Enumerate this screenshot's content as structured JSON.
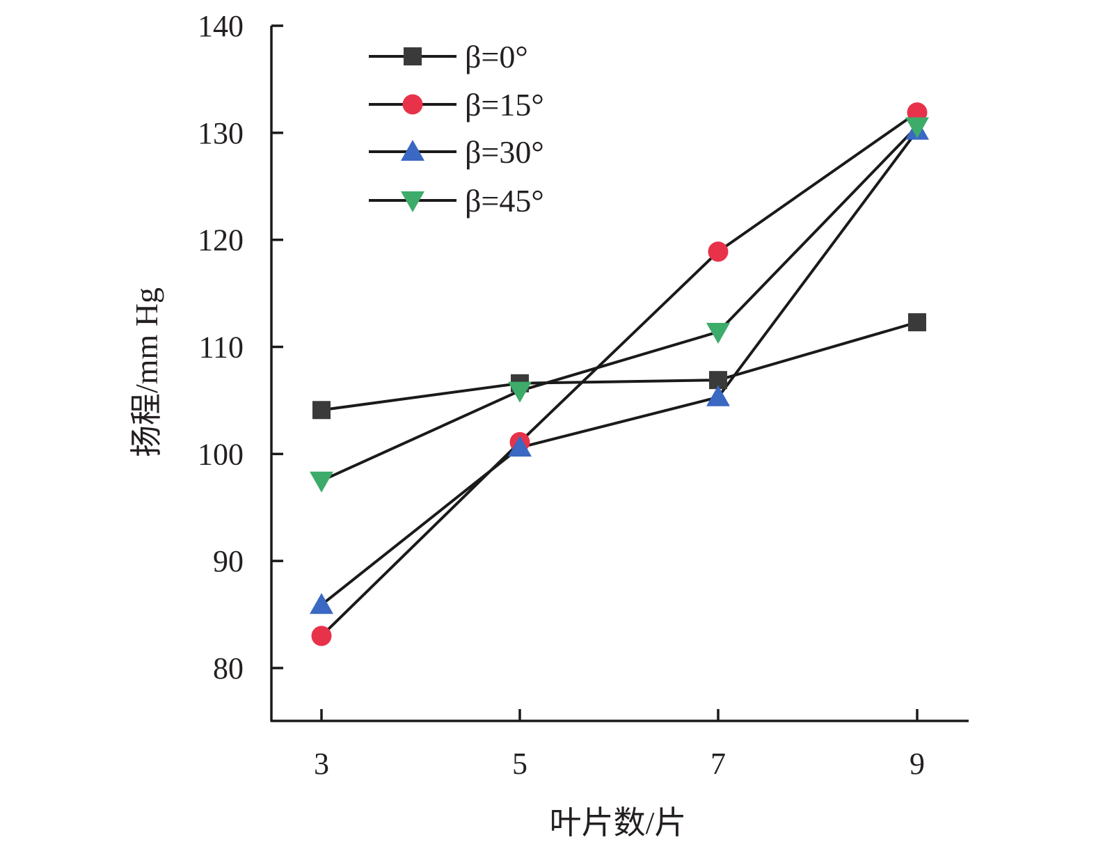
{
  "chart_data": {
    "type": "line",
    "title": "",
    "xlabel": "叶片数/片",
    "ylabel": "扬程/mm Hg",
    "x": [
      3,
      5,
      7,
      9
    ],
    "x_tick_labels": [
      "3",
      "5",
      "7",
      "9"
    ],
    "ylim": [
      75,
      140
    ],
    "y_ticks": [
      80,
      90,
      100,
      110,
      120,
      130,
      140
    ],
    "y_tick_labels": [
      "80",
      "90",
      "100",
      "110",
      "120",
      "130",
      "140"
    ],
    "grid": false,
    "legend_position": "top-left",
    "series": [
      {
        "name": "β=0°",
        "marker": "square",
        "color": "#3a3a3a",
        "values": [
          104.1,
          106.6,
          106.9,
          112.3
        ]
      },
      {
        "name": "β=15°",
        "marker": "circle",
        "color": "#e8324a",
        "values": [
          83.0,
          101.1,
          118.9,
          131.9
        ]
      },
      {
        "name": "β=30°",
        "marker": "triangle-up",
        "color": "#3a68c2",
        "values": [
          85.9,
          100.6,
          105.3,
          130.2
        ]
      },
      {
        "name": "β=45°",
        "marker": "triangle-down",
        "color": "#3dab6a",
        "values": [
          97.5,
          105.9,
          111.4,
          130.6
        ]
      }
    ],
    "line_color": "#1a1a1a",
    "axis_color": "#1a1a1a"
  }
}
